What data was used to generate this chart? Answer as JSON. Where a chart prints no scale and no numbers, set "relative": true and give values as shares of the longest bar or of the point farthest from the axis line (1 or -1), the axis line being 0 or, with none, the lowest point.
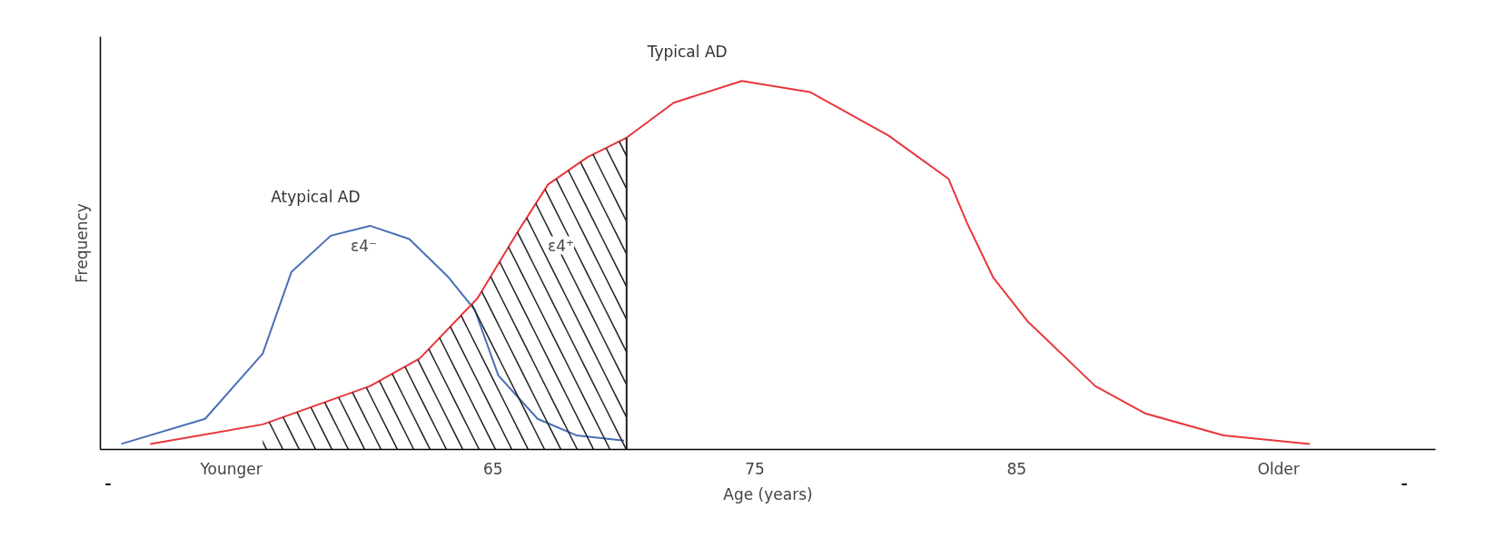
{
  "chart_data": {
    "type": "line",
    "relative": true,
    "xlabel": "Age (years)",
    "ylabel": "Frequency",
    "xlim": [
      50,
      101
    ],
    "xticks": [
      {
        "value": 55,
        "label": "Younger"
      },
      65,
      75,
      85,
      {
        "value": 95,
        "label": "Older"
      }
    ],
    "series": [
      {
        "name": "Atypical AD",
        "color": "#4a6fb5",
        "x": [
          50.8,
          54.0,
          56.2,
          57.3,
          58.8,
          60.3,
          61.8,
          63.3,
          64.3,
          65.2,
          66.7,
          68.2,
          70.0
        ],
        "values": [
          0.015,
          0.083,
          0.26,
          0.482,
          0.58,
          0.607,
          0.571,
          0.467,
          0.379,
          0.201,
          0.083,
          0.038,
          0.024
        ]
      },
      {
        "name": "Typical AD",
        "color": "#e8373c",
        "x": [
          51.9,
          56.2,
          60.3,
          62.2,
          64.4,
          65.9,
          67.1,
          68.6,
          70.1,
          71.9,
          74.5,
          77.1,
          80.1,
          82.4,
          83.1,
          84.1,
          85.4,
          88.0,
          89.9,
          92.9,
          96.2
        ],
        "values": [
          0.015,
          0.068,
          0.172,
          0.247,
          0.41,
          0.586,
          0.719,
          0.793,
          0.846,
          0.941,
          1.0,
          0.97,
          0.852,
          0.734,
          0.615,
          0.467,
          0.349,
          0.172,
          0.098,
          0.038,
          0.015
        ]
      },
      {
        "type": "area",
        "color": "#222222",
        "x": [
          56.2,
          60.3,
          62.2,
          64.4,
          65.9,
          67.1,
          68.6,
          70.1
        ],
        "values": [
          0.068,
          0.172,
          0.247,
          0.41,
          0.586,
          0.719,
          0.793,
          0.846
        ]
      }
    ],
    "ref_lines": [
      {
        "axis": "x",
        "value": 70.1,
        "color": "#222222"
      }
    ],
    "annotations": [
      "ε4⁻",
      "ε4⁺"
    ],
    "grid": false,
    "marker": "none",
    "line_style": "solid"
  }
}
